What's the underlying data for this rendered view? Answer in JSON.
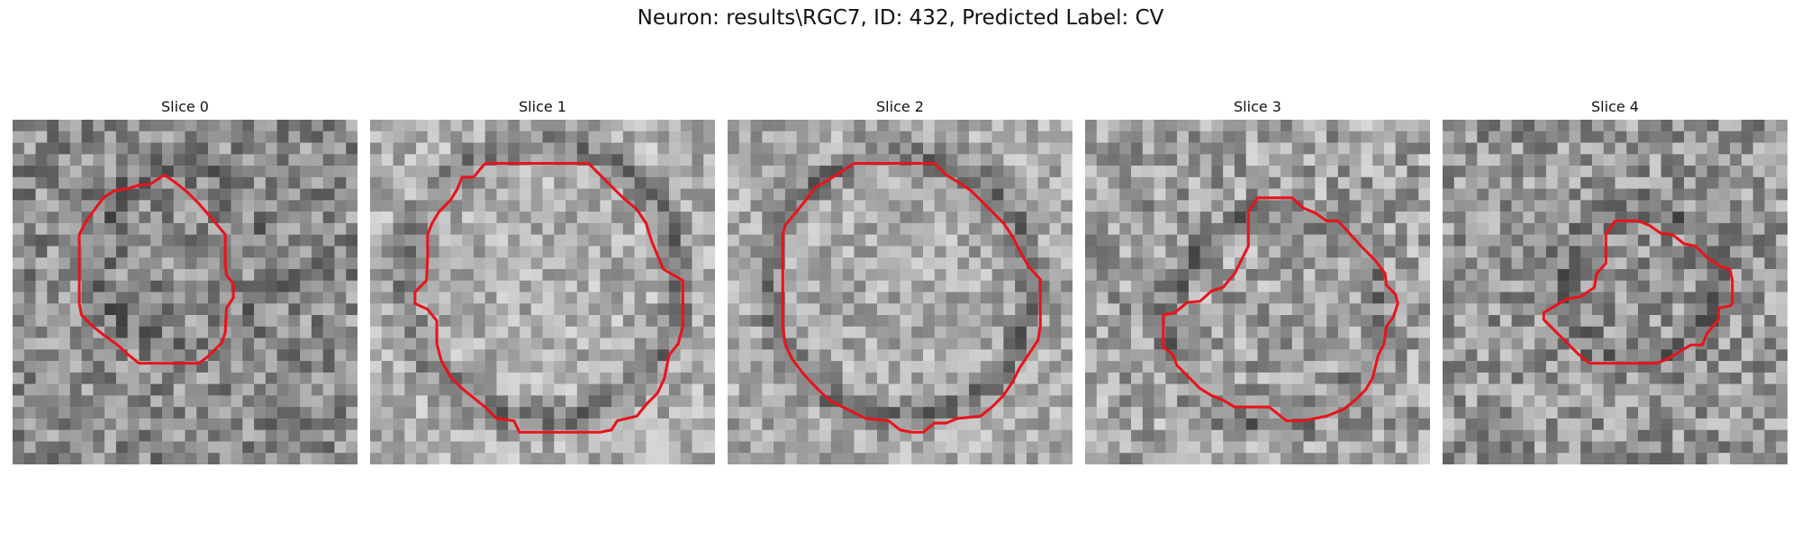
{
  "figure": {
    "title": "Neuron: results\\RGC7, ID: 432, Predicted Label: CV"
  },
  "panels": [
    {
      "title": "Slice 0",
      "contour_color": "#e8141c",
      "image": {
        "seed": 11,
        "mean": 140,
        "contrast": 55,
        "ring_strength": 30,
        "center": [
          0.5,
          0.4
        ],
        "radius": 0.26
      }
    },
    {
      "title": "Slice 1",
      "contour_color": "#e8141c",
      "image": {
        "seed": 23,
        "mean": 175,
        "contrast": 45,
        "ring_strength": 55,
        "center": [
          0.5,
          0.47
        ],
        "radius": 0.4
      }
    },
    {
      "title": "Slice 2",
      "contour_color": "#e8141c",
      "image": {
        "seed": 37,
        "mean": 170,
        "contrast": 45,
        "ring_strength": 55,
        "center": [
          0.5,
          0.48
        ],
        "radius": 0.38
      }
    },
    {
      "title": "Slice 3",
      "contour_color": "#e8141c",
      "image": {
        "seed": 51,
        "mean": 160,
        "contrast": 55,
        "ring_strength": 40,
        "center": [
          0.55,
          0.58
        ],
        "radius": 0.3
      }
    },
    {
      "title": "Slice 4",
      "contour_color": "#e8141c",
      "image": {
        "seed": 67,
        "mean": 150,
        "contrast": 55,
        "ring_strength": 35,
        "center": [
          0.57,
          0.48
        ],
        "radius": 0.22
      }
    }
  ]
}
